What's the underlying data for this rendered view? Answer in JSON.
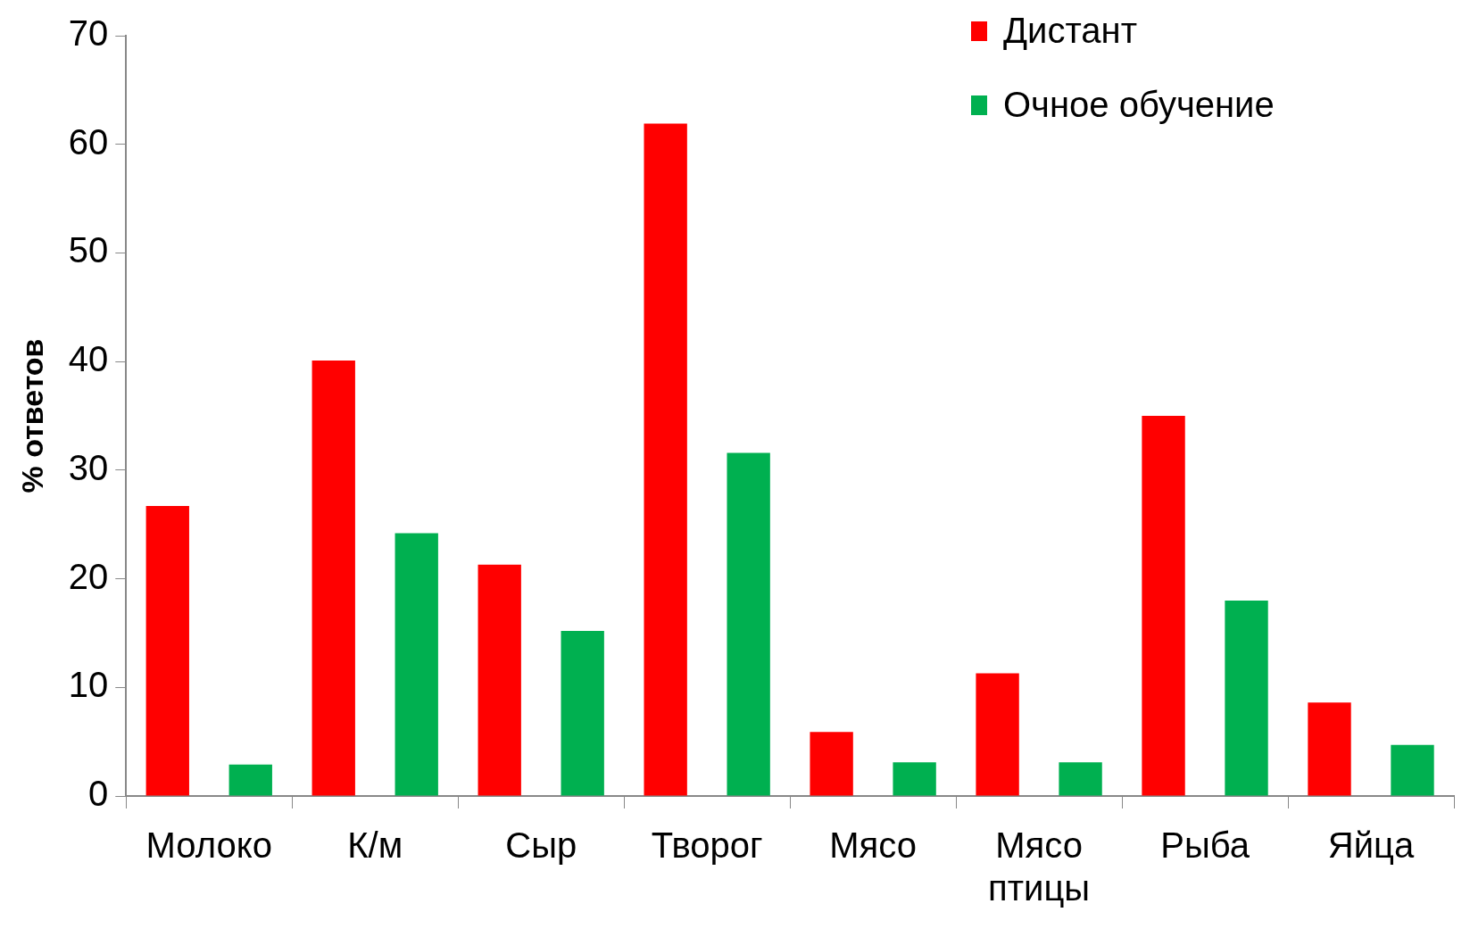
{
  "chart_data": {
    "type": "bar",
    "ylabel": "% ответов",
    "categories": [
      "Молоко",
      "К/м",
      "Сыр",
      "Творог",
      "Мясо",
      "Мясо птицы",
      "Рыба",
      "Яйца"
    ],
    "series": [
      {
        "name": "Дистант",
        "color": "#ff0000",
        "values": [
          26.7,
          40.1,
          21.3,
          61.9,
          5.9,
          11.3,
          35.0,
          8.6
        ]
      },
      {
        "name": "Очное обучение",
        "color": "#00b050",
        "values": [
          2.9,
          24.2,
          15.2,
          31.6,
          3.1,
          3.1,
          18.0,
          4.7
        ]
      }
    ],
    "ylim": [
      0,
      70
    ],
    "yticks": [
      0,
      10,
      20,
      30,
      40,
      50,
      60,
      70
    ],
    "legend": "top right"
  }
}
